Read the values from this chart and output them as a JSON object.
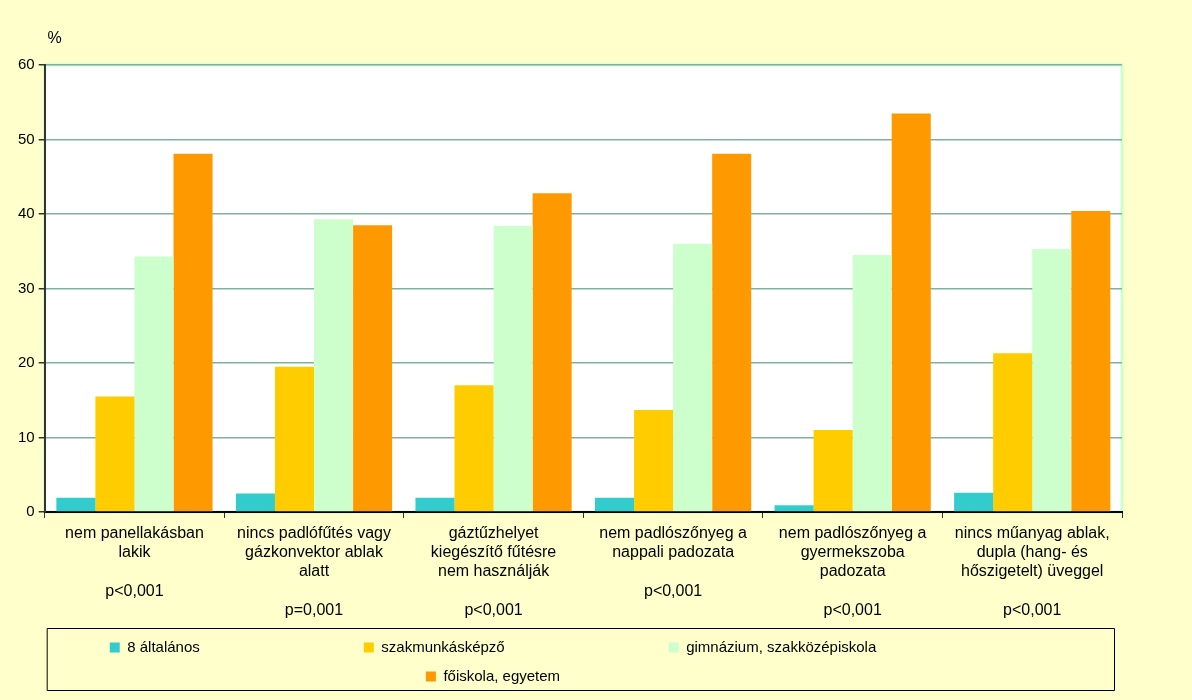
{
  "chart_data": {
    "type": "bar",
    "ylabel": "%",
    "categories": [
      "nem panellakásban lakik\n\np<0,001",
      "nincs padlófűtés vagy gázkonvektor ablak alatt\n\np=0,001",
      "gáztűzhelyet kiegészítő fűtésre nem használják\n\np<0,001",
      "nem padlószőnyeg a nappali padozata\n\np<0,001",
      "nem padlószőnyeg a gyermekszoba padozata\n\np<0,001",
      "nincs műanyag ablak, dupla (hang- és hőszigetelt) üveggel\n\np<0,001"
    ],
    "series": [
      {
        "name": "8 általános",
        "color": "#33cccc",
        "values": [
          1.9,
          2.5,
          1.9,
          1.9,
          0.9,
          2.6
        ]
      },
      {
        "name": "szakmunkásképző",
        "color": "#ffcc00",
        "values": [
          15.5,
          19.5,
          17.0,
          13.7,
          11.0,
          21.3
        ]
      },
      {
        "name": "gimnázium, szakközépiskola",
        "color": "#ccffcc",
        "values": [
          34.3,
          39.3,
          38.4,
          36.0,
          34.5,
          35.3
        ]
      },
      {
        "name": "főiskola, egyetem",
        "color": "#ff9900",
        "values": [
          48.1,
          38.5,
          42.8,
          48.1,
          53.5,
          40.4
        ]
      }
    ],
    "ylim": [
      0,
      60
    ],
    "yticks": [
      0,
      10,
      20,
      30,
      40,
      50,
      60
    ],
    "grid": "y",
    "legend": "bottom"
  }
}
